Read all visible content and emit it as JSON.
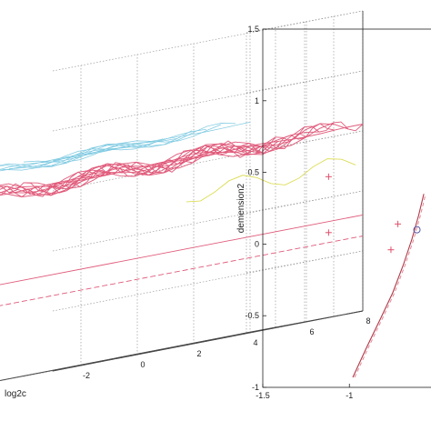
{
  "chart_data": [
    {
      "type": "surface3d",
      "xlabel": "log2c",
      "x_ticks": [
        "-2",
        "0",
        "2",
        "4",
        "6",
        "8"
      ],
      "x_range": [
        -3,
        8
      ],
      "y_range": [
        -8,
        8
      ],
      "z_range": [
        0,
        1
      ],
      "grid": true,
      "colors": {
        "main_mesh": "#e05a7a",
        "upper_mesh": "#7ac8e0",
        "mid_mesh": "#d8d840",
        "low_line": "#e05a7a"
      }
    },
    {
      "type": "scatter",
      "xlabel": "",
      "ylabel": "demension2",
      "x_ticks": [
        "-1.5",
        "-1"
      ],
      "y_ticks": [
        "1.5",
        "1",
        "0.5",
        "0",
        "-0.5",
        "-1"
      ],
      "xlim": [
        -1.5,
        -0.45
      ],
      "ylim": [
        -1,
        1.5
      ],
      "grid": false,
      "points": [
        {
          "x": -1.12,
          "y": 0.47,
          "marker": "+",
          "color": "#e0506a"
        },
        {
          "x": -1.12,
          "y": 0.08,
          "marker": "+",
          "color": "#e0506a"
        },
        {
          "x": -0.72,
          "y": 0.14,
          "marker": "+",
          "color": "#e0506a"
        },
        {
          "x": -0.76,
          "y": -0.04,
          "marker": "+",
          "color": "#e0506a"
        },
        {
          "x": -0.61,
          "y": 0.1,
          "marker": "o",
          "color": "#5a5aa8"
        }
      ],
      "curve": {
        "x": [
          -0.98,
          -0.9,
          -0.82,
          -0.75,
          -0.69,
          -0.64,
          -0.6,
          -0.57
        ],
        "y": [
          -0.93,
          -0.72,
          -0.52,
          -0.34,
          -0.15,
          0.03,
          0.2,
          0.35
        ],
        "color": "#b03a48"
      }
    }
  ]
}
